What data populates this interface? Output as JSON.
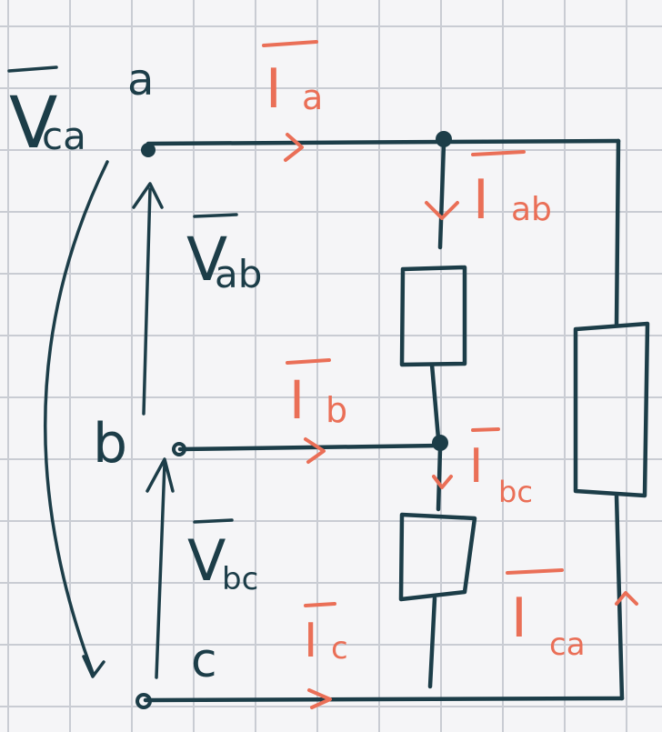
{
  "nodes": {
    "a": "a",
    "b": "b",
    "c": "c"
  },
  "voltages": {
    "ab": {
      "main": "V",
      "sub": "ab"
    },
    "bc": {
      "main": "V",
      "sub": "bc"
    },
    "ca": {
      "main": "V",
      "sub": "ca"
    }
  },
  "currents": {
    "a": {
      "main": "I",
      "sub": "a"
    },
    "b": {
      "main": "I",
      "sub": "b"
    },
    "c": {
      "main": "I",
      "sub": "c"
    },
    "ab": {
      "main": "I",
      "sub": "ab"
    },
    "bc": {
      "main": "I",
      "sub": "bc"
    },
    "ca": {
      "main": "I",
      "sub": "ca"
    }
  },
  "colors": {
    "ink": "#1c3d48",
    "current_labels": "#ea6f57",
    "grid": "#c9ccd3",
    "paper": "#f5f5f7"
  }
}
